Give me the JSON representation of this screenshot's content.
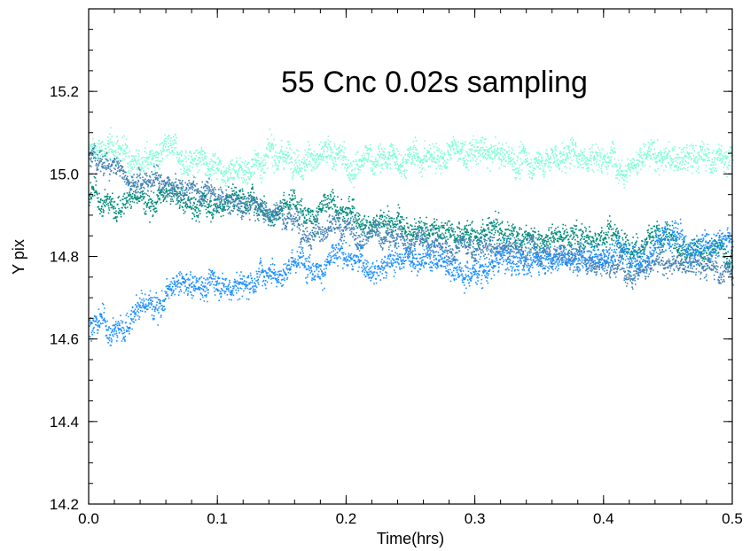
{
  "chart_data": {
    "type": "scatter",
    "title": "55 Cnc 0.02s sampling",
    "xlabel": "Time(hrs)",
    "ylabel": "Y pix",
    "xlim": [
      0.0,
      0.5
    ],
    "ylim": [
      14.2,
      15.4
    ],
    "x_ticks": [
      "0.0",
      "0.1",
      "0.2",
      "0.3",
      "0.4",
      "0.5"
    ],
    "y_ticks": [
      "14.2",
      "14.4",
      "14.6",
      "14.8",
      "15.0",
      "15.2"
    ],
    "grid": false,
    "legend": "none",
    "series": [
      {
        "color": "#7fffd4",
        "spread": 0.028,
        "x": [
          0.0,
          0.02,
          0.04,
          0.06,
          0.08,
          0.1,
          0.12,
          0.14,
          0.16,
          0.18,
          0.2,
          0.22,
          0.24,
          0.26,
          0.28,
          0.3,
          0.32,
          0.34,
          0.36,
          0.38,
          0.4,
          0.42,
          0.44,
          0.46,
          0.48,
          0.5
        ],
        "y": [
          15.05,
          15.06,
          15.05,
          15.04,
          15.03,
          15.03,
          15.02,
          15.04,
          15.06,
          15.04,
          15.02,
          15.03,
          15.04,
          15.04,
          15.05,
          15.05,
          15.04,
          15.03,
          15.04,
          15.05,
          15.05,
          15.04,
          15.04,
          15.03,
          15.04,
          15.05
        ]
      },
      {
        "color": "#008b7a",
        "spread": 0.024,
        "x": [
          0.0,
          0.02,
          0.04,
          0.06,
          0.08,
          0.1,
          0.12,
          0.14,
          0.16,
          0.18,
          0.2,
          0.22,
          0.24,
          0.26,
          0.28,
          0.3,
          0.32,
          0.34,
          0.36,
          0.38,
          0.4,
          0.42,
          0.44,
          0.46,
          0.48,
          0.5
        ],
        "y": [
          14.94,
          14.93,
          14.95,
          14.94,
          14.93,
          14.94,
          14.95,
          14.93,
          14.93,
          14.92,
          14.91,
          14.89,
          14.89,
          14.87,
          14.88,
          14.86,
          14.86,
          14.85,
          14.86,
          14.86,
          14.86,
          14.84,
          14.83,
          14.84,
          14.82,
          14.81
        ]
      },
      {
        "color": "#4682b4",
        "spread": 0.022,
        "x": [
          0.0,
          0.02,
          0.04,
          0.06,
          0.08,
          0.1,
          0.12,
          0.14,
          0.16,
          0.18,
          0.2,
          0.22,
          0.24,
          0.26,
          0.28,
          0.3,
          0.32,
          0.34,
          0.36,
          0.38,
          0.4,
          0.42,
          0.44,
          0.46,
          0.48,
          0.5
        ],
        "y": [
          15.04,
          15.02,
          14.99,
          14.97,
          14.96,
          14.95,
          14.93,
          14.91,
          14.9,
          14.87,
          14.85,
          14.85,
          14.84,
          14.84,
          14.82,
          14.82,
          14.81,
          14.82,
          14.81,
          14.8,
          14.79,
          14.79,
          14.78,
          14.78,
          14.77,
          14.77
        ]
      },
      {
        "color": "#1e90ff",
        "spread": 0.026,
        "x": [
          0.0,
          0.02,
          0.04,
          0.06,
          0.08,
          0.1,
          0.12,
          0.14,
          0.16,
          0.18,
          0.2,
          0.22,
          0.24,
          0.26,
          0.28,
          0.3,
          0.32,
          0.34,
          0.36,
          0.38,
          0.4,
          0.42,
          0.44,
          0.46,
          0.48,
          0.5
        ],
        "y": [
          14.64,
          14.62,
          14.68,
          14.71,
          14.73,
          14.75,
          14.73,
          14.78,
          14.79,
          14.79,
          14.8,
          14.78,
          14.8,
          14.81,
          14.79,
          14.77,
          14.79,
          14.79,
          14.81,
          14.8,
          14.82,
          14.81,
          14.82,
          14.84,
          14.84,
          14.83
        ]
      }
    ]
  }
}
